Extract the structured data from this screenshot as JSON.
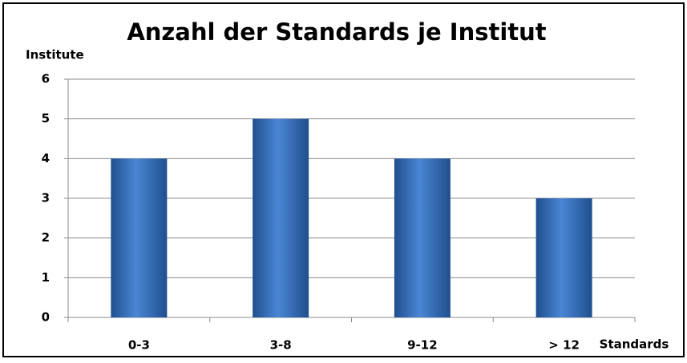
{
  "chart_data": {
    "type": "bar",
    "title": "Anzahl der Standards je Institut",
    "y_label": "Institute",
    "x_label": "Standards",
    "categories": [
      "0-3",
      "3-8",
      "9-12",
      "> 12"
    ],
    "values": [
      4,
      5,
      4,
      3
    ],
    "color": "#4a86d4",
    "ylim": [
      0,
      6
    ],
    "yticks": [
      0,
      1,
      2,
      3,
      4,
      5,
      6
    ],
    "grid": true
  }
}
